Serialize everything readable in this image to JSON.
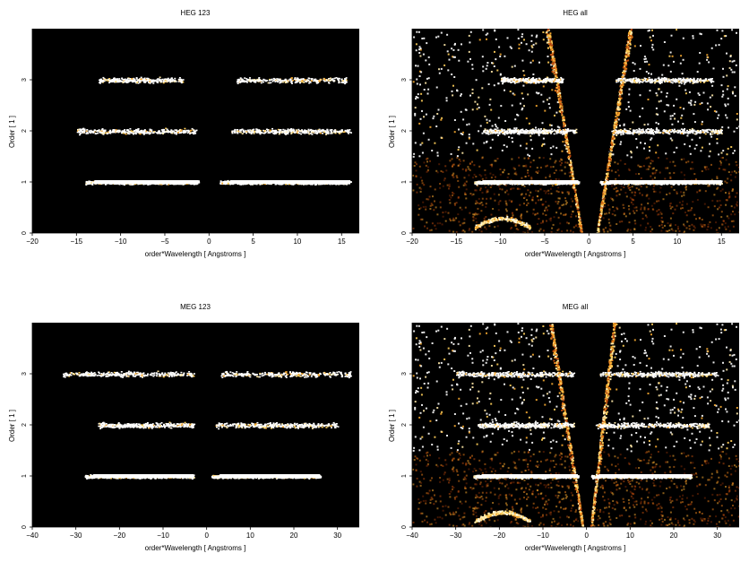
{
  "chart_data": [
    {
      "type": "heatmap",
      "title": "HEG 123",
      "xlabel": "order*Wavelength [ Angstroms ]",
      "ylabel": "Order [ 1 ]",
      "xlim": [
        -20,
        17
      ],
      "ylim": [
        0,
        4
      ],
      "xticks": [
        -20,
        -15,
        -10,
        -5,
        0,
        5,
        10,
        15
      ],
      "yticks": [
        0,
        1,
        2,
        3
      ],
      "background": "#000000",
      "bands": [
        {
          "order": 1,
          "ranges": [
            [
              -14,
              -1.2
            ],
            [
              1.2,
              16
            ]
          ],
          "intensity": 1.0
        },
        {
          "order": 2,
          "ranges": [
            [
              -15,
              -1.5
            ],
            [
              2.5,
              16
            ]
          ],
          "intensity": 0.45
        },
        {
          "order": 3,
          "ranges": [
            [
              -12.5,
              -3
            ],
            [
              3,
              15.5
            ]
          ],
          "intensity": 0.35
        }
      ],
      "wedges": []
    },
    {
      "type": "heatmap",
      "title": "HEG all",
      "xlabel": "order*Wavelength [ Angstroms ]",
      "ylabel": "Order [ 1 ]",
      "xlim": [
        -20,
        17
      ],
      "ylim": [
        0,
        4
      ],
      "xticks": [
        -20,
        -15,
        -10,
        -5,
        0,
        5,
        10,
        15
      ],
      "yticks": [
        0,
        1,
        2,
        3
      ],
      "background": "#000000",
      "bands": [
        {
          "order": 1,
          "ranges": [
            [
              -13,
              -1.2
            ],
            [
              1.2,
              15
            ]
          ],
          "intensity": 1.0
        },
        {
          "order": 2,
          "ranges": [
            [
              -12,
              -1.5
            ],
            [
              2.5,
              15
            ]
          ],
          "intensity": 0.5
        },
        {
          "order": 3,
          "ranges": [
            [
              -10,
              -3
            ],
            [
              3,
              14
            ]
          ],
          "intensity": 0.35
        }
      ],
      "wedges": [
        {
          "x_at_0": -0.8,
          "x_at_top": -4.5
        },
        {
          "x_at_0": 0.8,
          "x_at_top": 4.5
        }
      ]
    },
    {
      "type": "heatmap",
      "title": "MEG 123",
      "xlabel": "order*Wavelength [ Angstroms ]",
      "ylabel": "Order [ 1 ]",
      "xlim": [
        -40,
        35
      ],
      "ylim": [
        0,
        4
      ],
      "xticks": [
        -40,
        -30,
        -20,
        -10,
        0,
        10,
        20,
        30
      ],
      "yticks": [
        0,
        1,
        2,
        3
      ],
      "background": "#000000",
      "bands": [
        {
          "order": 1,
          "ranges": [
            [
              -28,
              -3
            ],
            [
              1,
              26
            ]
          ],
          "intensity": 1.0
        },
        {
          "order": 2,
          "ranges": [
            [
              -25,
              -3
            ],
            [
              2,
              30
            ]
          ],
          "intensity": 0.45
        },
        {
          "order": 3,
          "ranges": [
            [
              -33,
              -3
            ],
            [
              3,
              33
            ]
          ],
          "intensity": 0.4
        }
      ],
      "wedges": []
    },
    {
      "type": "heatmap",
      "title": "MEG all",
      "xlabel": "order*Wavelength [ Angstroms ]",
      "ylabel": "Order [ 1 ]",
      "xlim": [
        -40,
        35
      ],
      "ylim": [
        0,
        4
      ],
      "xticks": [
        -40,
        -30,
        -20,
        -10,
        0,
        10,
        20,
        30
      ],
      "yticks": [
        0,
        1,
        2,
        3
      ],
      "background": "#000000",
      "bands": [
        {
          "order": 1,
          "ranges": [
            [
              -26,
              -2
            ],
            [
              1,
              24
            ]
          ],
          "intensity": 1.0
        },
        {
          "order": 2,
          "ranges": [
            [
              -25,
              -3
            ],
            [
              2,
              28
            ]
          ],
          "intensity": 0.5
        },
        {
          "order": 3,
          "ranges": [
            [
              -30,
              -3
            ],
            [
              3,
              30
            ]
          ],
          "intensity": 0.4
        }
      ],
      "wedges": [
        {
          "x_at_0": -0.8,
          "x_at_top": -8
        },
        {
          "x_at_0": 0.8,
          "x_at_top": 6
        }
      ]
    }
  ]
}
